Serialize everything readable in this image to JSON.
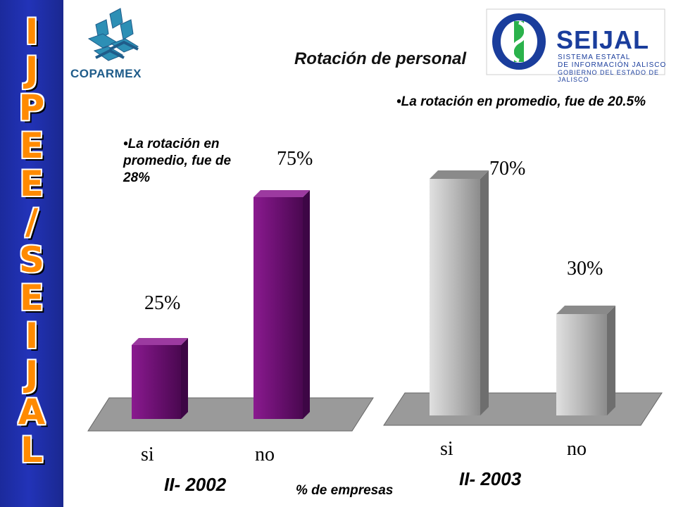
{
  "sidebar": {
    "letters": [
      "I",
      "J",
      "P",
      "E",
      "E",
      "/",
      "S",
      "E",
      "I",
      "J",
      "A",
      "L"
    ]
  },
  "logos": {
    "left": {
      "text": "COPARMEX"
    },
    "right": {
      "name": "SEIJAL",
      "line1": "SISTEMA ESTATAL",
      "line2": "DE INFORMACIÓN JALISCO",
      "line3": "GOBIERNO DEL ESTADO DE JALISCO"
    }
  },
  "title": "Rotación de personal",
  "notes": {
    "left": "•La rotación en promedio, fue de 28%",
    "right": "•La rotación en promedio,  fue de 20.5%"
  },
  "units": "% de empresas",
  "colors": {
    "sidebar": "#2233b8",
    "sidebar_letters": "#ff8a00",
    "bars_2002": "#6a1070",
    "bars_2003": "#b8b8b8",
    "floor": "#9a9a9a"
  },
  "chart_data": [
    {
      "type": "bar",
      "period": "II- 2002",
      "categories": [
        "si",
        "no"
      ],
      "values": [
        25,
        75
      ],
      "value_labels": [
        "25%",
        "75%"
      ],
      "ylim": [
        0,
        100
      ]
    },
    {
      "type": "bar",
      "period": "II- 2003",
      "categories": [
        "si",
        "no"
      ],
      "values": [
        70,
        30
      ],
      "value_labels": [
        "70%",
        "30%"
      ],
      "ylim": [
        0,
        100
      ]
    }
  ]
}
